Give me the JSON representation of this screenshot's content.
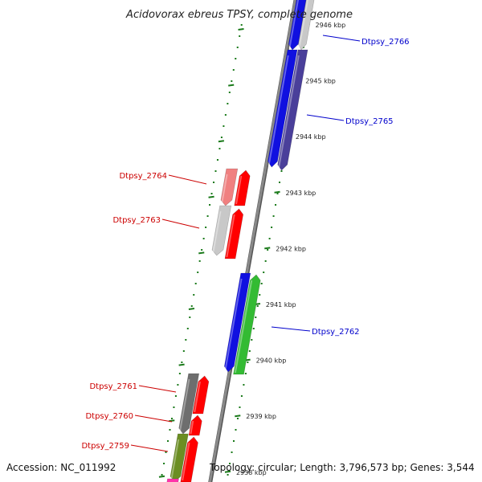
{
  "title": "Acidovorax ebreus TPSY, complete genome",
  "footer": {
    "accession": "Accession: NC_011992",
    "topology": "Topology: circular; Length: 3,796,573 bp; Genes: 3,544"
  },
  "colors": {
    "forward_label": "#0000cc",
    "reverse_label": "#cc0000",
    "tick": "#1a7a1a",
    "backbone": "#8a8a8a",
    "blue": "#1010e0",
    "navy": "#4a3f9a",
    "red": "#ff0000",
    "pink": "#f08080",
    "lightgray": "#c8c8c8",
    "darkgray": "#6e6e6e",
    "green": "#33bb33",
    "olive": "#6b8e23",
    "magenta": "#ff33aa"
  },
  "ticks": [
    {
      "label": "2946 kbp",
      "kbp": 2946
    },
    {
      "label": "2945 kbp",
      "kbp": 2945
    },
    {
      "label": "2944 kbp",
      "kbp": 2944
    },
    {
      "label": "2943 kbp",
      "kbp": 2943
    },
    {
      "label": "2942 kbp",
      "kbp": 2942
    },
    {
      "label": "2941 kbp",
      "kbp": 2941
    },
    {
      "label": "2940 kbp",
      "kbp": 2940
    },
    {
      "label": "2939 kbp",
      "kbp": 2939
    },
    {
      "label": "2938 kbp",
      "kbp": 2938
    }
  ],
  "gene_labels": [
    {
      "id": "Dtpsy_2766",
      "strand": "forward"
    },
    {
      "id": "Dtpsy_2765",
      "strand": "forward"
    },
    {
      "id": "Dtpsy_2764",
      "strand": "reverse"
    },
    {
      "id": "Dtpsy_2763",
      "strand": "reverse"
    },
    {
      "id": "Dtpsy_2762",
      "strand": "forward"
    },
    {
      "id": "Dtpsy_2761",
      "strand": "reverse"
    },
    {
      "id": "Dtpsy_2760",
      "strand": "reverse"
    },
    {
      "id": "Dtpsy_2759",
      "strand": "reverse"
    }
  ]
}
